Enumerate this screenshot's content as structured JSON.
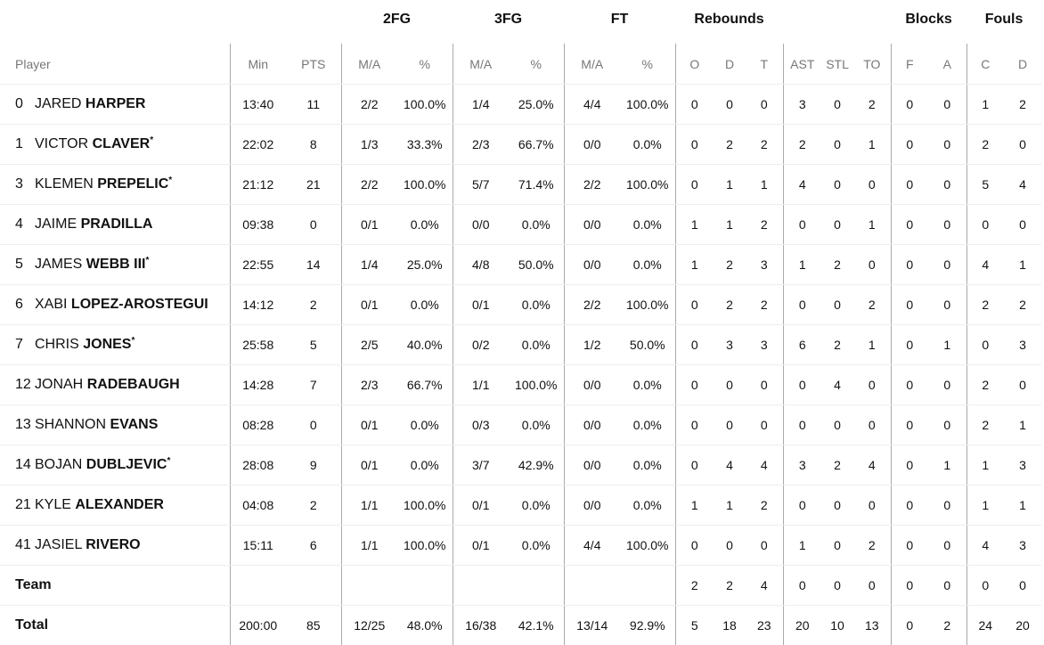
{
  "groups": {
    "fg2": "2FG",
    "fg3": "3FG",
    "ft": "FT",
    "rebounds": "Rebounds",
    "blocks": "Blocks",
    "fouls": "Fouls"
  },
  "columns": [
    "Min",
    "PTS",
    "M/A",
    "%",
    "M/A",
    "%",
    "M/A",
    "%",
    "O",
    "D",
    "T",
    "AST",
    "STL",
    "TO",
    "F",
    "A",
    "C",
    "D"
  ],
  "player_header": "Player",
  "players": [
    {
      "number": "0",
      "first": "JARED",
      "last": "HARPER",
      "starter": "",
      "stats": [
        "13:40",
        "11",
        "2/2",
        "100.0%",
        "1/4",
        "25.0%",
        "4/4",
        "100.0%",
        "0",
        "0",
        "0",
        "3",
        "0",
        "2",
        "0",
        "0",
        "1",
        "2"
      ]
    },
    {
      "number": "1",
      "first": "VICTOR",
      "last": "CLAVER",
      "starter": "*",
      "stats": [
        "22:02",
        "8",
        "1/3",
        "33.3%",
        "2/3",
        "66.7%",
        "0/0",
        "0.0%",
        "0",
        "2",
        "2",
        "2",
        "0",
        "1",
        "0",
        "0",
        "2",
        "0"
      ]
    },
    {
      "number": "3",
      "first": "KLEMEN",
      "last": "PREPELIC",
      "starter": "*",
      "stats": [
        "21:12",
        "21",
        "2/2",
        "100.0%",
        "5/7",
        "71.4%",
        "2/2",
        "100.0%",
        "0",
        "1",
        "1",
        "4",
        "0",
        "0",
        "0",
        "0",
        "5",
        "4"
      ]
    },
    {
      "number": "4",
      "first": "JAIME",
      "last": "PRADILLA",
      "starter": "",
      "stats": [
        "09:38",
        "0",
        "0/1",
        "0.0%",
        "0/0",
        "0.0%",
        "0/0",
        "0.0%",
        "1",
        "1",
        "2",
        "0",
        "0",
        "1",
        "0",
        "0",
        "0",
        "0"
      ]
    },
    {
      "number": "5",
      "first": "JAMES",
      "last": "WEBB III",
      "starter": "*",
      "stats": [
        "22:55",
        "14",
        "1/4",
        "25.0%",
        "4/8",
        "50.0%",
        "0/0",
        "0.0%",
        "1",
        "2",
        "3",
        "1",
        "2",
        "0",
        "0",
        "0",
        "4",
        "1"
      ]
    },
    {
      "number": "6",
      "first": "XABI",
      "last": "LOPEZ-AROSTEGUI",
      "starter": "",
      "stats": [
        "14:12",
        "2",
        "0/1",
        "0.0%",
        "0/1",
        "0.0%",
        "2/2",
        "100.0%",
        "0",
        "2",
        "2",
        "0",
        "0",
        "2",
        "0",
        "0",
        "2",
        "2"
      ]
    },
    {
      "number": "7",
      "first": "CHRIS",
      "last": "JONES",
      "starter": "*",
      "stats": [
        "25:58",
        "5",
        "2/5",
        "40.0%",
        "0/2",
        "0.0%",
        "1/2",
        "50.0%",
        "0",
        "3",
        "3",
        "6",
        "2",
        "1",
        "0",
        "1",
        "0",
        "3"
      ]
    },
    {
      "number": "12",
      "first": "JONAH",
      "last": "RADEBAUGH",
      "starter": "",
      "stats": [
        "14:28",
        "7",
        "2/3",
        "66.7%",
        "1/1",
        "100.0%",
        "0/0",
        "0.0%",
        "0",
        "0",
        "0",
        "0",
        "4",
        "0",
        "0",
        "0",
        "2",
        "0"
      ]
    },
    {
      "number": "13",
      "first": "SHANNON",
      "last": "EVANS",
      "starter": "",
      "stats": [
        "08:28",
        "0",
        "0/1",
        "0.0%",
        "0/3",
        "0.0%",
        "0/0",
        "0.0%",
        "0",
        "0",
        "0",
        "0",
        "0",
        "0",
        "0",
        "0",
        "2",
        "1"
      ]
    },
    {
      "number": "14",
      "first": "BOJAN",
      "last": "DUBLJEVIC",
      "starter": "*",
      "stats": [
        "28:08",
        "9",
        "0/1",
        "0.0%",
        "3/7",
        "42.9%",
        "0/0",
        "0.0%",
        "0",
        "4",
        "4",
        "3",
        "2",
        "4",
        "0",
        "1",
        "1",
        "3"
      ]
    },
    {
      "number": "21",
      "first": "KYLE",
      "last": "ALEXANDER",
      "starter": "",
      "stats": [
        "04:08",
        "2",
        "1/1",
        "100.0%",
        "0/1",
        "0.0%",
        "0/0",
        "0.0%",
        "1",
        "1",
        "2",
        "0",
        "0",
        "0",
        "0",
        "0",
        "1",
        "1"
      ]
    },
    {
      "number": "41",
      "first": "JASIEL",
      "last": "RIVERO",
      "starter": "",
      "stats": [
        "15:11",
        "6",
        "1/1",
        "100.0%",
        "0/1",
        "0.0%",
        "4/4",
        "100.0%",
        "0",
        "0",
        "0",
        "1",
        "0",
        "2",
        "0",
        "0",
        "4",
        "3"
      ]
    }
  ],
  "team": {
    "label": "Team",
    "stats": [
      "",
      "",
      "",
      "",
      "",
      "",
      "",
      "",
      "2",
      "2",
      "4",
      "0",
      "0",
      "0",
      "0",
      "0",
      "0",
      "0"
    ]
  },
  "total": {
    "label": "Total",
    "stats": [
      "200:00",
      "85",
      "12/25",
      "48.0%",
      "16/38",
      "42.1%",
      "13/14",
      "92.9%",
      "5",
      "18",
      "23",
      "20",
      "10",
      "13",
      "0",
      "2",
      "24",
      "20"
    ]
  }
}
